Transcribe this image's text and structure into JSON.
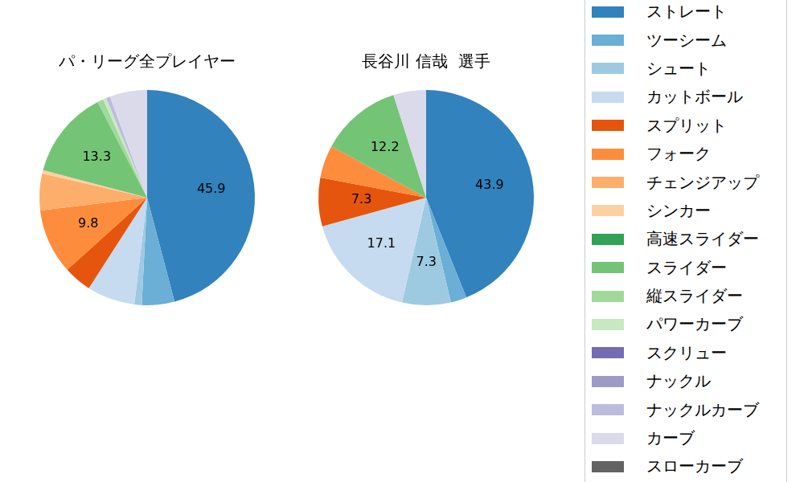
{
  "chart_data": [
    {
      "type": "pie",
      "title": "パ・リーグ全プレイヤー",
      "categories": [
        "ストレート",
        "ツーシーム",
        "シュート",
        "カットボール",
        "スプリット",
        "フォーク",
        "チェンジアップ",
        "シンカー",
        "高速スライダー",
        "スライダー",
        "縦スライダー",
        "パワーカーブ",
        "スクリュー",
        "ナックル",
        "ナックルカーブ",
        "カーブ",
        "スローカーブ"
      ],
      "values": [
        45.9,
        4.9,
        1.1,
        7.2,
        4.2,
        9.8,
        5.5,
        0.5,
        0,
        13.3,
        0.9,
        0.5,
        0,
        0,
        0.6,
        5.6,
        0
      ],
      "colors": [
        "#3182bd",
        "#6baed6",
        "#9ecae1",
        "#c6dbef",
        "#e6550d",
        "#fd8d3c",
        "#fdae6b",
        "#fdd0a2",
        "#31a354",
        "#74c476",
        "#a1d99b",
        "#c7e9c0",
        "#756bb1",
        "#9e9ac8",
        "#bcbddc",
        "#dadaeb",
        "#636363"
      ],
      "data_labels": true,
      "value_labels": [
        "45.9",
        null,
        null,
        null,
        null,
        "9.8",
        null,
        null,
        null,
        "13.3",
        null,
        null,
        null,
        null,
        null,
        null,
        null
      ]
    },
    {
      "type": "pie",
      "title": "長谷川 信哉  選手",
      "categories": [
        "ストレート",
        "ツーシーム",
        "シュート",
        "カットボール",
        "スプリット",
        "フォーク",
        "チェンジアップ",
        "シンカー",
        "高速スライダー",
        "スライダー",
        "縦スライダー",
        "パワーカーブ",
        "スクリュー",
        "ナックル",
        "ナックルカーブ",
        "カーブ",
        "スローカーブ"
      ],
      "values": [
        43.9,
        2.4,
        7.3,
        17.1,
        7.3,
        4.9,
        0,
        0,
        0,
        12.2,
        0,
        0,
        0,
        0,
        0,
        4.9,
        0
      ],
      "colors": [
        "#3182bd",
        "#6baed6",
        "#9ecae1",
        "#c6dbef",
        "#e6550d",
        "#fd8d3c",
        "#fdae6b",
        "#fdd0a2",
        "#31a354",
        "#74c476",
        "#a1d99b",
        "#c7e9c0",
        "#756bb1",
        "#9e9ac8",
        "#bcbddc",
        "#dadaeb",
        "#636363"
      ],
      "data_labels": true,
      "value_labels": [
        "43.9",
        null,
        "7.3",
        "17.1",
        "7.3",
        null,
        null,
        null,
        null,
        "12.2",
        null,
        null,
        null,
        null,
        null,
        null,
        null
      ],
      "legend": "right"
    }
  ]
}
